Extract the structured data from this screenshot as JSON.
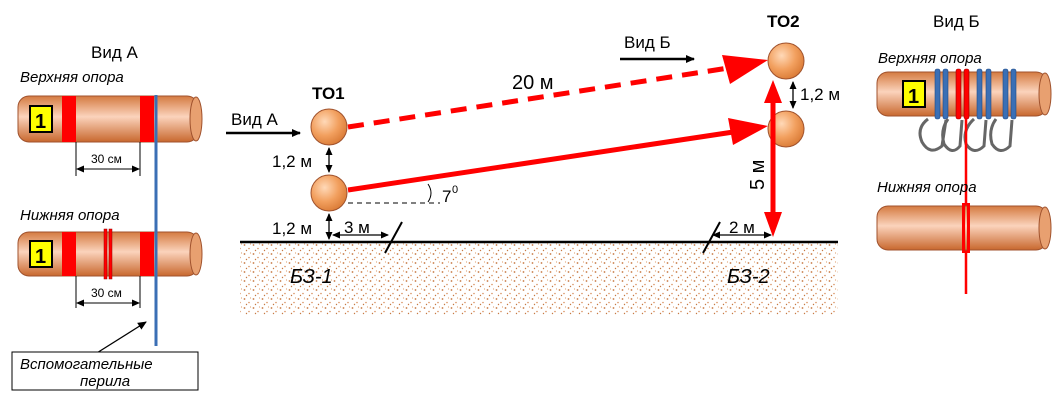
{
  "colors": {
    "accent_red": "#ff0000",
    "pipe_orange": "#d9824a",
    "pipe_light": "#fbd3bc",
    "badge_yellow": "#ffff00",
    "rope_blue": "#3b6fb5",
    "soil_dots": "#c77a44"
  },
  "left_panel": {
    "title": "Вид А",
    "upper_label": "Верхняя опора",
    "lower_label": "Нижняя опора",
    "badge": "1",
    "dim_upper": "30 см",
    "dim_lower": "30 см",
    "note_line1": "Вспомогательные",
    "note_line2": "перила"
  },
  "center_panel": {
    "to1": "ТО1",
    "to2": "ТО2",
    "view_a": "Вид А",
    "view_b": "Вид Б",
    "len_top": "20 м",
    "h_between_1": "1,2 м",
    "h_ground_1": "1,2 м",
    "h_between_2": "1,2 м",
    "dist_3m": "3 м",
    "dist_2m": "2 м",
    "vert_5m": "5 м",
    "angle": "7",
    "angle_unit": "0",
    "zone1": "БЗ-1",
    "zone2": "БЗ-2"
  },
  "right_panel": {
    "title": "Вид Б",
    "upper_label": "Верхняя опора",
    "lower_label": "Нижняя опора",
    "badge": "1"
  }
}
